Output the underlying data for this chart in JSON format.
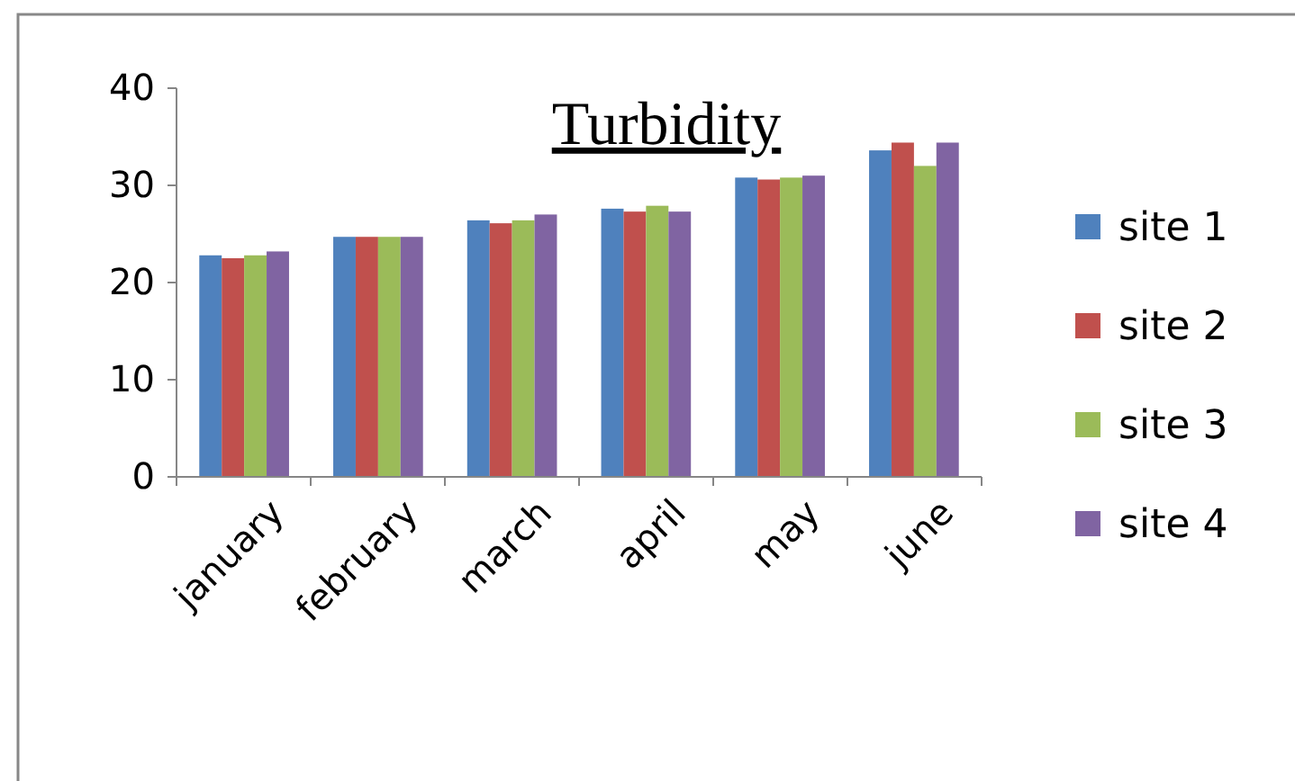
{
  "chart_data": {
    "type": "bar",
    "title": "Turbidity",
    "categories": [
      "january",
      "february",
      "march",
      "april",
      "may",
      "june"
    ],
    "series": [
      {
        "name": "site 1",
        "color": "#4f81bd",
        "values": [
          22.8,
          24.7,
          26.4,
          27.6,
          30.8,
          33.6
        ]
      },
      {
        "name": "site 2",
        "color": "#c0504d",
        "values": [
          22.5,
          24.7,
          26.1,
          27.3,
          30.6,
          34.4
        ]
      },
      {
        "name": "site 3",
        "color": "#9bbb59",
        "values": [
          22.8,
          24.7,
          26.4,
          27.9,
          30.8,
          32.0
        ]
      },
      {
        "name": "site 4",
        "color": "#8064a2",
        "values": [
          23.2,
          24.7,
          27.0,
          27.3,
          31.0,
          34.4
        ]
      }
    ],
    "ylim": [
      0,
      40
    ],
    "yticks": [
      0,
      10,
      20,
      30,
      40
    ],
    "grid": false,
    "legend": "right"
  }
}
